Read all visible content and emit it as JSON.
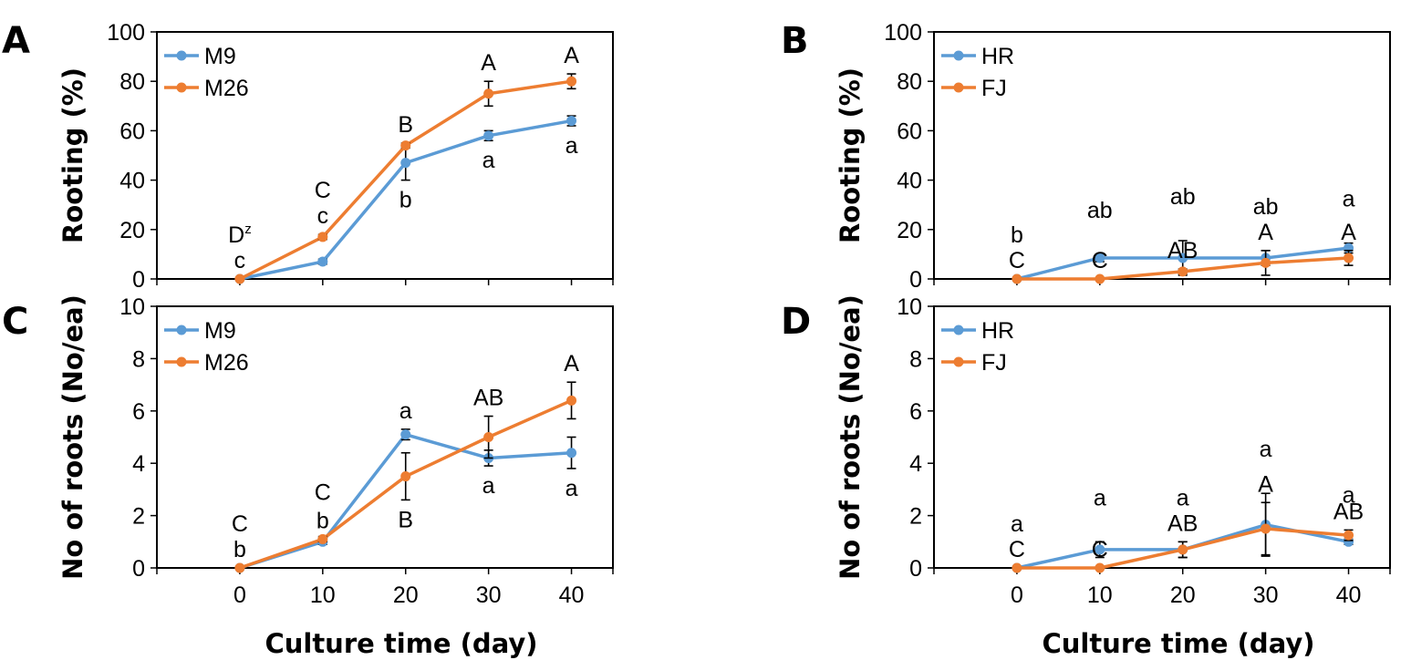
{
  "figure": {
    "x_axis_title": "Culture time (day)"
  },
  "chart_data": [
    {
      "panel": "A",
      "type": "line",
      "xlabel": "",
      "ylabel": "Rooting (%)",
      "x": [
        0,
        10,
        20,
        30,
        40
      ],
      "xlim": [
        -10,
        45
      ],
      "ylim": [
        0,
        100
      ],
      "yticks": [
        0,
        20,
        40,
        60,
        80,
        100
      ],
      "xticks": [],
      "legend_position": "top-left",
      "series": [
        {
          "name": "M9",
          "color": "#5b9bd5",
          "values": [
            0,
            7,
            47,
            58,
            64
          ],
          "errors": [
            0,
            1,
            7,
            2,
            2
          ],
          "labels": [
            {
              "text": "c",
              "sup": "",
              "place": "above"
            },
            {
              "text": "",
              "sup": "",
              "place": "below"
            },
            {
              "text": "b",
              "sup": "",
              "place": "below"
            },
            {
              "text": "a",
              "sup": "",
              "place": "below"
            },
            {
              "text": "a",
              "sup": "",
              "place": "below"
            }
          ]
        },
        {
          "name": "M26",
          "color": "#ed7d31",
          "values": [
            0,
            17,
            54,
            75,
            80
          ],
          "errors": [
            0,
            1,
            1,
            5,
            3
          ],
          "labels": [
            {
              "text": "D",
              "sup": "z",
              "place": "above2"
            },
            {
              "text": "c",
              "sup": "",
              "place": "above"
            },
            {
              "text": "B",
              "sup": "",
              "place": "above"
            },
            {
              "text": "A",
              "sup": "",
              "place": "above"
            },
            {
              "text": "A",
              "sup": "",
              "place": "above"
            }
          ]
        }
      ],
      "extra_labels": [
        {
          "x": 10,
          "text": "C",
          "series": 1,
          "place": "above2"
        }
      ]
    },
    {
      "panel": "B",
      "type": "line",
      "xlabel": "",
      "ylabel": "Rooting (%)",
      "x": [
        0,
        10,
        20,
        30,
        40
      ],
      "xlim": [
        -10,
        45
      ],
      "ylim": [
        0,
        100
      ],
      "yticks": [
        0,
        20,
        40,
        60,
        80,
        100
      ],
      "xticks": [],
      "legend_position": "top-left",
      "series": [
        {
          "name": "HR",
          "color": "#5b9bd5",
          "values": [
            0,
            8.5,
            8.5,
            8.5,
            12.5
          ],
          "errors": [
            0,
            1.5,
            7,
            3,
            2
          ],
          "labels": [
            {
              "text": "b",
              "sup": "",
              "place": "above2"
            },
            {
              "text": "ab",
              "sup": "",
              "place": "above2"
            },
            {
              "text": "ab",
              "sup": "",
              "place": "above2"
            },
            {
              "text": "ab",
              "sup": "",
              "place": "above2"
            },
            {
              "text": "a",
              "sup": "",
              "place": "above2"
            }
          ]
        },
        {
          "name": "FJ",
          "color": "#ed7d31",
          "values": [
            0,
            0,
            3,
            6.5,
            8.5
          ],
          "errors": [
            0,
            0,
            1,
            5,
            3
          ],
          "labels": [
            {
              "text": "C",
              "sup": "",
              "place": "above"
            },
            {
              "text": "C",
              "sup": "",
              "place": "above"
            },
            {
              "text": "AB",
              "sup": "",
              "place": "above"
            },
            {
              "text": "A",
              "sup": "",
              "place": "above"
            },
            {
              "text": "A",
              "sup": "",
              "place": "above"
            }
          ]
        }
      ],
      "extra_labels": []
    },
    {
      "panel": "C",
      "type": "line",
      "xlabel": "Culture time (day)",
      "ylabel": "No of roots (No/ea)",
      "x": [
        0,
        10,
        20,
        30,
        40
      ],
      "xlim": [
        -10,
        45
      ],
      "ylim": [
        0,
        10
      ],
      "yticks": [
        0,
        2,
        4,
        6,
        8,
        10
      ],
      "xticks": [
        0,
        10,
        20,
        30,
        40
      ],
      "legend_position": "top-left",
      "series": [
        {
          "name": "M9",
          "color": "#5b9bd5",
          "values": [
            0,
            1.0,
            5.1,
            4.2,
            4.4
          ],
          "errors": [
            0,
            0.1,
            0.2,
            0.3,
            0.6
          ],
          "labels": [
            {
              "text": "b",
              "sup": "",
              "place": "above"
            },
            {
              "text": "b",
              "sup": "",
              "place": "above"
            },
            {
              "text": "a",
              "sup": "",
              "place": "above"
            },
            {
              "text": "a",
              "sup": "",
              "place": "below"
            },
            {
              "text": "a",
              "sup": "",
              "place": "below"
            }
          ]
        },
        {
          "name": "M26",
          "color": "#ed7d31",
          "values": [
            0,
            1.1,
            3.5,
            5.0,
            6.4
          ],
          "errors": [
            0,
            0.1,
            0.9,
            0.8,
            0.7
          ],
          "labels": [
            {
              "text": "C",
              "sup": "",
              "place": "above2"
            },
            {
              "text": "C",
              "sup": "",
              "place": "above2"
            },
            {
              "text": "B",
              "sup": "",
              "place": "below"
            },
            {
              "text": "AB",
              "sup": "",
              "place": "above"
            },
            {
              "text": "A",
              "sup": "",
              "place": "above"
            }
          ]
        }
      ],
      "extra_labels": []
    },
    {
      "panel": "D",
      "type": "line",
      "xlabel": "Culture time (day)",
      "ylabel": "No of roots (No/ea)",
      "x": [
        0,
        10,
        20,
        30,
        40
      ],
      "xlim": [
        -10,
        45
      ],
      "ylim": [
        0,
        10
      ],
      "yticks": [
        0,
        2,
        4,
        6,
        8,
        10
      ],
      "xticks": [
        0,
        10,
        20,
        30,
        40
      ],
      "legend_position": "top-left",
      "series": [
        {
          "name": "HR",
          "color": "#5b9bd5",
          "values": [
            0,
            0.7,
            0.7,
            1.65,
            1.0
          ],
          "errors": [
            0,
            0.3,
            0.3,
            1.2,
            0.1
          ],
          "labels": [
            {
              "text": "a",
              "sup": "",
              "place": "above2"
            },
            {
              "text": "a",
              "sup": "",
              "place": "above2"
            },
            {
              "text": "a",
              "sup": "",
              "place": "above2"
            },
            {
              "text": "a",
              "sup": "",
              "place": "above2"
            },
            {
              "text": "a",
              "sup": "",
              "place": "above2"
            }
          ]
        },
        {
          "name": "FJ",
          "color": "#ed7d31",
          "values": [
            0,
            0,
            0.7,
            1.5,
            1.25
          ],
          "errors": [
            0,
            0,
            0.3,
            1.0,
            0.2
          ],
          "labels": [
            {
              "text": "C",
              "sup": "",
              "place": "above"
            },
            {
              "text": "C",
              "sup": "",
              "place": "above"
            },
            {
              "text": "AB",
              "sup": "",
              "place": "above"
            },
            {
              "text": "A",
              "sup": "",
              "place": "above"
            },
            {
              "text": "AB",
              "sup": "",
              "place": "above"
            }
          ]
        }
      ],
      "extra_labels": []
    }
  ]
}
